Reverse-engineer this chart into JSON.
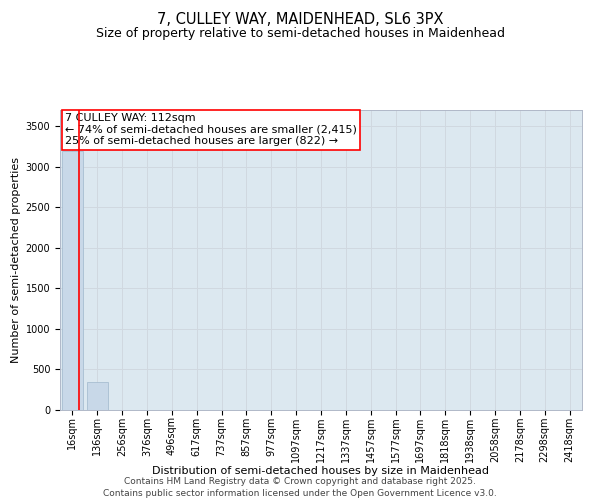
{
  "title_line1": "7, CULLEY WAY, MAIDENHEAD, SL6 3PX",
  "title_line2": "Size of property relative to semi-detached houses in Maidenhead",
  "xlabel": "Distribution of semi-detached houses by size in Maidenhead",
  "ylabel": "Number of semi-detached properties",
  "categories": [
    "16sqm",
    "136sqm",
    "256sqm",
    "376sqm",
    "496sqm",
    "617sqm",
    "737sqm",
    "857sqm",
    "977sqm",
    "1097sqm",
    "1217sqm",
    "1337sqm",
    "1457sqm",
    "1577sqm",
    "1697sqm",
    "1818sqm",
    "1938sqm",
    "2058sqm",
    "2178sqm",
    "2298sqm",
    "2418sqm"
  ],
  "bar_values": [
    3200,
    350,
    0,
    0,
    0,
    0,
    0,
    0,
    0,
    0,
    0,
    0,
    0,
    0,
    0,
    0,
    0,
    0,
    0,
    0,
    0
  ],
  "bar_color": "#c8d8e8",
  "bar_edge_color": "#a0b8cc",
  "annotation_title": "7 CULLEY WAY: 112sqm",
  "annotation_line2": "← 74% of semi-detached houses are smaller (2,415)",
  "annotation_line3": "25% of semi-detached houses are larger (822) →",
  "ylim": [
    0,
    3700
  ],
  "yticks": [
    0,
    500,
    1000,
    1500,
    2000,
    2500,
    3000,
    3500
  ],
  "grid_color": "#d0d8e0",
  "background_color": "#dce8f0",
  "footer_line1": "Contains HM Land Registry data © Crown copyright and database right 2025.",
  "footer_line2": "Contains public sector information licensed under the Open Government Licence v3.0.",
  "title_fontsize": 10.5,
  "subtitle_fontsize": 9,
  "axis_label_fontsize": 8,
  "tick_fontsize": 7,
  "annotation_fontsize": 8,
  "footer_fontsize": 6.5
}
